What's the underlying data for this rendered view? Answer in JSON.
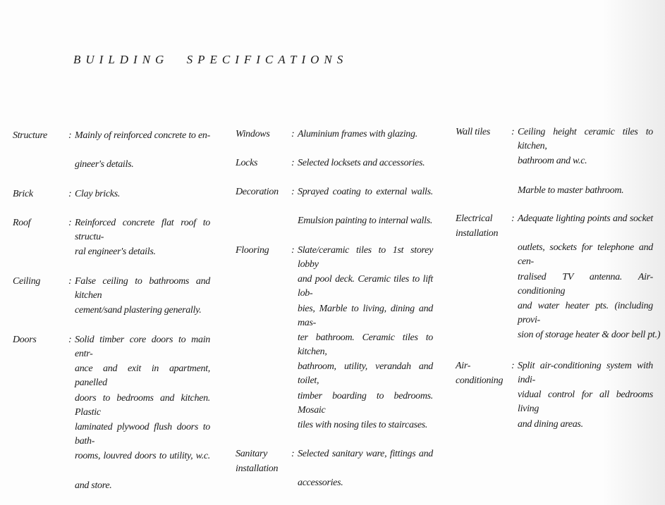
{
  "title": "BUILDING SPECIFICATIONS",
  "columns": [
    {
      "entries": [
        {
          "label": [
            "Structure"
          ],
          "paragraphs": [
            [
              "Mainly of reinforced concrete to en-",
              "gineer's details."
            ]
          ]
        },
        {
          "label": [
            "Brick"
          ],
          "paragraphs": [
            [
              "Clay bricks."
            ]
          ]
        },
        {
          "label": [
            "Roof"
          ],
          "paragraphs": [
            [
              "Reinforced concrete flat roof to structu-",
              "ral engineer's details."
            ]
          ]
        },
        {
          "label": [
            "Ceiling"
          ],
          "paragraphs": [
            [
              "False ceiling to bathrooms and kitchen",
              "cement/sand plastering generally."
            ]
          ]
        },
        {
          "label": [
            "Doors"
          ],
          "paragraphs": [
            [
              "Solid timber core doors to main entr-",
              "ance and exit in apartment, panelled",
              "doors to bedrooms and kitchen. Plastic",
              "laminated plywood flush doors to bath-",
              "rooms, louvred doors to utility, w.c.",
              "and store."
            ]
          ]
        }
      ]
    },
    {
      "entries": [
        {
          "label": [
            "Windows"
          ],
          "paragraphs": [
            [
              "Aluminium frames with glazing."
            ]
          ]
        },
        {
          "label": [
            "Locks"
          ],
          "paragraphs": [
            [
              "Selected locksets and accessories."
            ]
          ]
        },
        {
          "label": [
            "Decoration"
          ],
          "paragraphs": [
            [
              "Sprayed coating to external walls.",
              "Emulsion painting to internal walls."
            ]
          ]
        },
        {
          "label": [
            "Flooring"
          ],
          "paragraphs": [
            [
              "Slate/ceramic tiles to 1st storey lobby",
              "and pool deck. Ceramic tiles to lift lob-",
              "bies, Marble to living, dining and mas-",
              "ter bathroom. Ceramic tiles to kitchen,",
              "bathroom, utility, verandah and toilet,",
              "timber boarding to bedrooms. Mosaic",
              "tiles with nosing tiles to staircases."
            ]
          ]
        },
        {
          "label": [
            "Sanitary",
            "installation"
          ],
          "paragraphs": [
            [
              "Selected sanitary ware, fittings and",
              "accessories."
            ]
          ]
        }
      ]
    },
    {
      "entries": [
        {
          "label": [
            "Wall tiles"
          ],
          "paragraphs": [
            [
              "Ceiling height ceramic tiles to kitchen,",
              "bathroom and w.c."
            ],
            [
              "Marble to master bathroom."
            ]
          ]
        },
        {
          "label": [
            "Electrical",
            "installation"
          ],
          "paragraphs": [
            [
              "Adequate lighting points and socket",
              "outlets, sockets for telephone and cen-",
              "tralised TV antenna. Air-conditioning",
              "and water heater pts. (including provi-",
              "sion of storage heater & door bell pt.)"
            ]
          ]
        },
        {
          "label": [
            "Air-",
            "conditioning"
          ],
          "paragraphs": [
            [
              "Split air-conditioning system with indi-",
              "vidual control for all bedrooms living",
              "and dining areas."
            ]
          ]
        }
      ]
    }
  ]
}
